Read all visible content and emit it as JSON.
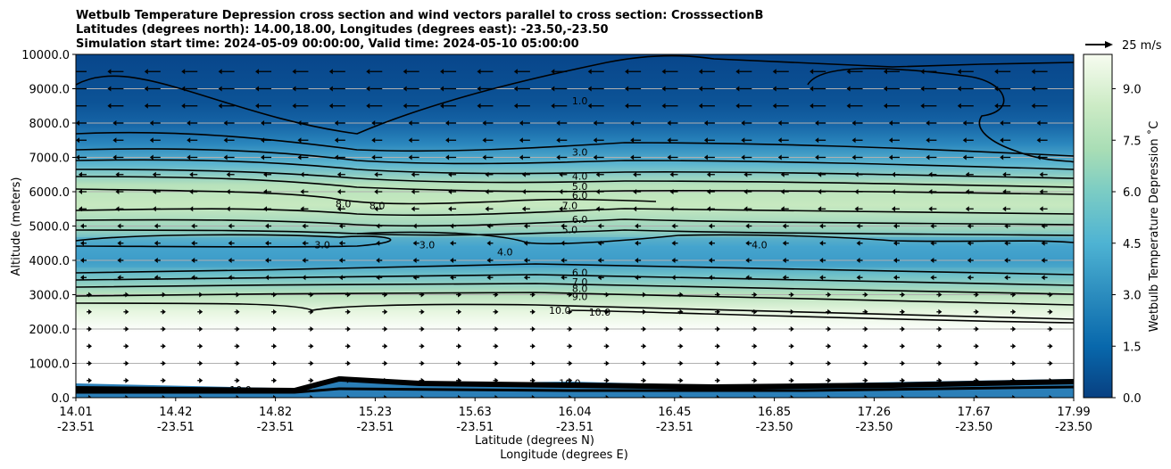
{
  "chart_data": {
    "type": "contour",
    "title_lines": [
      "Wetbulb Temperature Depression cross section and wind vectors parallel to cross section: CrosssectionB",
      "Latitudes (degrees north): 14.00,18.00, Longitudes (degrees east): -23.50,-23.50",
      "Simulation start time: 2024-05-09 00:00:00, Valid time: 2024-05-10 05:00:00"
    ],
    "xlabel_lat": "Latitude (degrees N)",
    "xlabel_lon": "Longitude (degrees E)",
    "ylabel": "Altitude (meters)",
    "x_ticks": [
      {
        "lat": "14.01",
        "lon": "-23.51"
      },
      {
        "lat": "14.42",
        "lon": "-23.51"
      },
      {
        "lat": "14.82",
        "lon": "-23.51"
      },
      {
        "lat": "15.23",
        "lon": "-23.51"
      },
      {
        "lat": "15.63",
        "lon": "-23.51"
      },
      {
        "lat": "16.04",
        "lon": "-23.51"
      },
      {
        "lat": "16.45",
        "lon": "-23.51"
      },
      {
        "lat": "16.85",
        "lon": "-23.50"
      },
      {
        "lat": "17.26",
        "lon": "-23.50"
      },
      {
        "lat": "17.67",
        "lon": "-23.50"
      },
      {
        "lat": "17.99",
        "lon": "-23.50"
      }
    ],
    "y_ticks": [
      "0.0",
      "1000.0",
      "2000.0",
      "3000.0",
      "4000.0",
      "5000.0",
      "6000.0",
      "7000.0",
      "8000.0",
      "9000.0",
      "10000.0"
    ],
    "ylim": [
      0,
      10000
    ],
    "grid": "horizontal",
    "colorbar": {
      "label": "Wetbulb Temperature Depression ˚C",
      "range": [
        0,
        10
      ],
      "ticks": [
        "0.0",
        "1.5",
        "3.0",
        "4.5",
        "6.0",
        "7.5",
        "9.0"
      ]
    },
    "quiver_key": "25 m/s",
    "contour_labels": [
      {
        "text": "1.0",
        "x": 0.505,
        "y": 8650
      },
      {
        "text": "3.0",
        "x": 0.505,
        "y": 7150
      },
      {
        "text": "4.0",
        "x": 0.505,
        "y": 6450
      },
      {
        "text": "5.0",
        "x": 0.505,
        "y": 6150
      },
      {
        "text": "6.0",
        "x": 0.505,
        "y": 5900
      },
      {
        "text": "7.0",
        "x": 0.495,
        "y": 5600
      },
      {
        "text": "6.0",
        "x": 0.505,
        "y": 5200
      },
      {
        "text": "5.0",
        "x": 0.495,
        "y": 4900
      },
      {
        "text": "8.0",
        "x": 0.268,
        "y": 5650
      },
      {
        "text": "8.0",
        "x": 0.302,
        "y": 5600
      },
      {
        "text": "3.0",
        "x": 0.247,
        "y": 4450
      },
      {
        "text": "3.0",
        "x": 0.352,
        "y": 4450
      },
      {
        "text": "4.0",
        "x": 0.43,
        "y": 4250
      },
      {
        "text": "4.0",
        "x": 0.685,
        "y": 4450
      },
      {
        "text": "6.0",
        "x": 0.505,
        "y": 3650
      },
      {
        "text": "7.0",
        "x": 0.505,
        "y": 3380
      },
      {
        "text": "8.0",
        "x": 0.505,
        "y": 3180
      },
      {
        "text": "9.0",
        "x": 0.505,
        "y": 2950
      },
      {
        "text": "10.0",
        "x": 0.485,
        "y": 2550
      },
      {
        "text": "10.0",
        "x": 0.525,
        "y": 2500
      },
      {
        "text": "10.0",
        "x": 0.165,
        "y": 230
      },
      {
        "text": "10.0",
        "x": 0.495,
        "y": 430
      }
    ]
  },
  "colors": {
    "low": "#08468b",
    "mid": "#4aa8cf",
    "high": "#c7e9c0",
    "top": "#f7fcf0"
  }
}
